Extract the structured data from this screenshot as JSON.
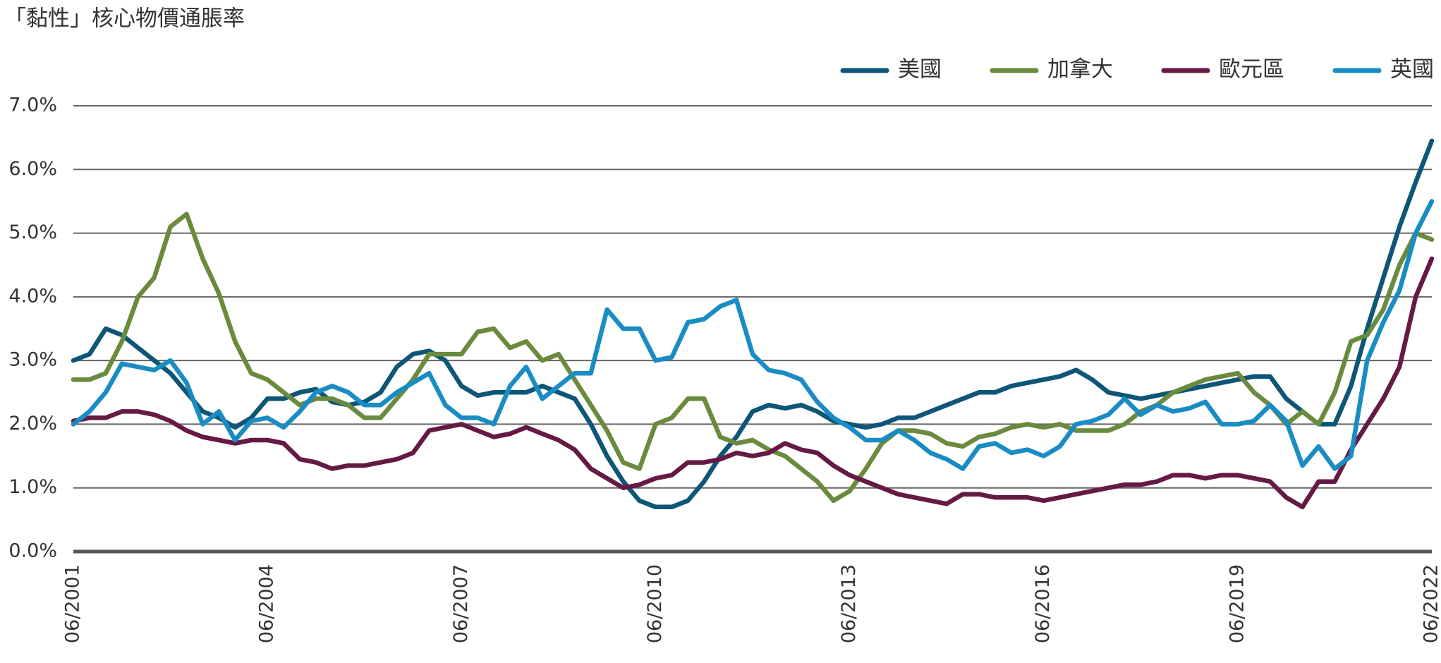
{
  "chart_data": {
    "type": "line",
    "title": "「黏性」核心物價通脹率",
    "x": [
      "06/2001",
      "09/2001",
      "12/2001",
      "03/2002",
      "06/2002",
      "09/2002",
      "12/2002",
      "03/2003",
      "06/2003",
      "09/2003",
      "12/2003",
      "03/2004",
      "06/2004",
      "09/2004",
      "12/2004",
      "03/2005",
      "06/2005",
      "09/2005",
      "12/2005",
      "03/2006",
      "06/2006",
      "09/2006",
      "12/2006",
      "03/2007",
      "06/2007",
      "09/2007",
      "12/2007",
      "03/2008",
      "06/2008",
      "09/2008",
      "12/2008",
      "03/2009",
      "06/2009",
      "09/2009",
      "12/2009",
      "03/2010",
      "06/2010",
      "09/2010",
      "12/2010",
      "03/2011",
      "06/2011",
      "09/2011",
      "12/2011",
      "03/2012",
      "06/2012",
      "09/2012",
      "12/2012",
      "03/2013",
      "06/2013",
      "09/2013",
      "12/2013",
      "03/2014",
      "06/2014",
      "09/2014",
      "12/2014",
      "03/2015",
      "06/2015",
      "09/2015",
      "12/2015",
      "03/2016",
      "06/2016",
      "09/2016",
      "12/2016",
      "03/2017",
      "06/2017",
      "09/2017",
      "12/2017",
      "03/2018",
      "06/2018",
      "09/2018",
      "12/2018",
      "03/2019",
      "06/2019",
      "09/2019",
      "12/2019",
      "03/2020",
      "06/2020",
      "09/2020",
      "12/2020",
      "03/2021",
      "06/2021",
      "09/2021",
      "12/2021",
      "03/2022",
      "06/2022"
    ],
    "series": [
      {
        "name": "美國",
        "color": "#0e5677",
        "values": [
          3.0,
          3.1,
          3.5,
          3.4,
          3.2,
          3.0,
          2.8,
          2.5,
          2.2,
          2.1,
          1.95,
          2.1,
          2.4,
          2.4,
          2.5,
          2.55,
          2.35,
          2.3,
          2.35,
          2.5,
          2.9,
          3.1,
          3.15,
          3.0,
          2.6,
          2.45,
          2.5,
          2.5,
          2.5,
          2.6,
          2.5,
          2.4,
          2.0,
          1.5,
          1.1,
          0.8,
          0.7,
          0.7,
          0.8,
          1.1,
          1.5,
          1.8,
          2.2,
          2.3,
          2.25,
          2.3,
          2.2,
          2.05,
          2.0,
          1.95,
          2.0,
          2.1,
          2.1,
          2.2,
          2.3,
          2.4,
          2.5,
          2.5,
          2.6,
          2.65,
          2.7,
          2.75,
          2.85,
          2.7,
          2.5,
          2.45,
          2.4,
          2.45,
          2.5,
          2.55,
          2.6,
          2.65,
          2.7,
          2.75,
          2.75,
          2.4,
          2.2,
          2.0,
          2.0,
          2.6,
          3.5,
          4.3,
          5.1,
          5.8,
          6.45
        ]
      },
      {
        "name": "加拿大",
        "color": "#6a8a3d",
        "values": [
          2.7,
          2.7,
          2.8,
          3.3,
          4.0,
          4.3,
          5.1,
          5.3,
          4.6,
          4.05,
          3.3,
          2.8,
          2.7,
          2.5,
          2.3,
          2.4,
          2.4,
          2.3,
          2.1,
          2.1,
          2.4,
          2.7,
          3.1,
          3.1,
          3.1,
          3.45,
          3.5,
          3.2,
          3.3,
          3.0,
          3.1,
          2.7,
          2.3,
          1.9,
          1.4,
          1.3,
          2.0,
          2.1,
          2.4,
          2.4,
          1.8,
          1.7,
          1.75,
          1.6,
          1.5,
          1.3,
          1.1,
          0.8,
          0.95,
          1.3,
          1.7,
          1.9,
          1.9,
          1.85,
          1.7,
          1.65,
          1.8,
          1.85,
          1.95,
          2.0,
          1.95,
          2.0,
          1.9,
          1.9,
          1.9,
          2.0,
          2.2,
          2.3,
          2.5,
          2.6,
          2.7,
          2.75,
          2.8,
          2.5,
          2.3,
          2.0,
          2.2,
          2.0,
          2.5,
          3.3,
          3.4,
          3.8,
          4.5,
          5.0,
          4.9
        ]
      },
      {
        "name": "歐元區",
        "color": "#651a44",
        "values": [
          2.05,
          2.1,
          2.1,
          2.2,
          2.2,
          2.15,
          2.05,
          1.9,
          1.8,
          1.75,
          1.7,
          1.75,
          1.75,
          1.7,
          1.45,
          1.4,
          1.3,
          1.35,
          1.35,
          1.4,
          1.45,
          1.55,
          1.9,
          1.95,
          2.0,
          1.9,
          1.8,
          1.85,
          1.95,
          1.85,
          1.75,
          1.6,
          1.3,
          1.15,
          1.0,
          1.05,
          1.15,
          1.2,
          1.4,
          1.4,
          1.45,
          1.55,
          1.5,
          1.55,
          1.7,
          1.6,
          1.55,
          1.35,
          1.2,
          1.1,
          1.0,
          0.9,
          0.85,
          0.8,
          0.75,
          0.9,
          0.9,
          0.85,
          0.85,
          0.85,
          0.8,
          0.85,
          0.9,
          0.95,
          1.0,
          1.05,
          1.05,
          1.1,
          1.2,
          1.2,
          1.15,
          1.2,
          1.2,
          1.15,
          1.1,
          0.85,
          0.7,
          1.1,
          1.1,
          1.6,
          2.0,
          2.4,
          2.9,
          4.0,
          4.6
        ]
      },
      {
        "name": "英國",
        "color": "#1a8cc4",
        "values": [
          2.0,
          2.2,
          2.5,
          2.95,
          2.9,
          2.85,
          3.0,
          2.65,
          2.0,
          2.2,
          1.75,
          2.05,
          2.1,
          1.95,
          2.2,
          2.5,
          2.6,
          2.5,
          2.3,
          2.3,
          2.5,
          2.65,
          2.8,
          2.3,
          2.1,
          2.1,
          2.0,
          2.6,
          2.9,
          2.4,
          2.6,
          2.8,
          2.8,
          3.8,
          3.5,
          3.5,
          3.0,
          3.05,
          3.6,
          3.65,
          3.85,
          3.95,
          3.1,
          2.85,
          2.8,
          2.7,
          2.35,
          2.1,
          1.95,
          1.75,
          1.75,
          1.9,
          1.75,
          1.55,
          1.45,
          1.3,
          1.65,
          1.7,
          1.55,
          1.6,
          1.5,
          1.65,
          2.0,
          2.05,
          2.15,
          2.4,
          2.15,
          2.3,
          2.2,
          2.25,
          2.35,
          2.0,
          2.0,
          2.05,
          2.3,
          2.05,
          1.35,
          1.65,
          1.3,
          1.5,
          3.0,
          3.6,
          4.1,
          5.0,
          5.5
        ]
      }
    ],
    "ylim": [
      0,
      7
    ],
    "yticks": [
      {
        "value": 0,
        "label": "0.0%"
      },
      {
        "value": 1,
        "label": "1.0%"
      },
      {
        "value": 2,
        "label": "2.0%"
      },
      {
        "value": 3,
        "label": "3.0%"
      },
      {
        "value": 4,
        "label": "4.0%"
      },
      {
        "value": 5,
        "label": "5.0%"
      },
      {
        "value": 6,
        "label": "6.0%"
      },
      {
        "value": 7,
        "label": "7.0%"
      }
    ],
    "grid": true,
    "legend": "top-right"
  }
}
